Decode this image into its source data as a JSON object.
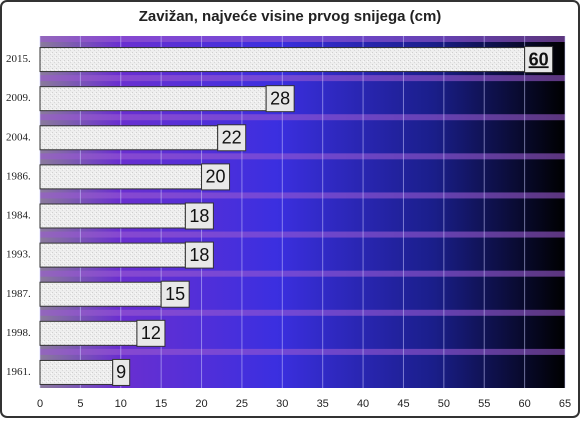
{
  "chart_data": {
    "type": "hbar",
    "title": "Zavižan, najveće visine prvog snijega (cm)",
    "categories": [
      "2015.",
      "2009.",
      "2004.",
      "1986.",
      "1984.",
      "1993.",
      "1987.",
      "1998.",
      "1961."
    ],
    "values": [
      60,
      28,
      22,
      20,
      18,
      18,
      15,
      12,
      9
    ],
    "xlim": [
      0,
      65
    ],
    "xticks": [
      0,
      5,
      10,
      15,
      20,
      25,
      30,
      35,
      40,
      45,
      50,
      55,
      60,
      65
    ],
    "grid": true
  }
}
